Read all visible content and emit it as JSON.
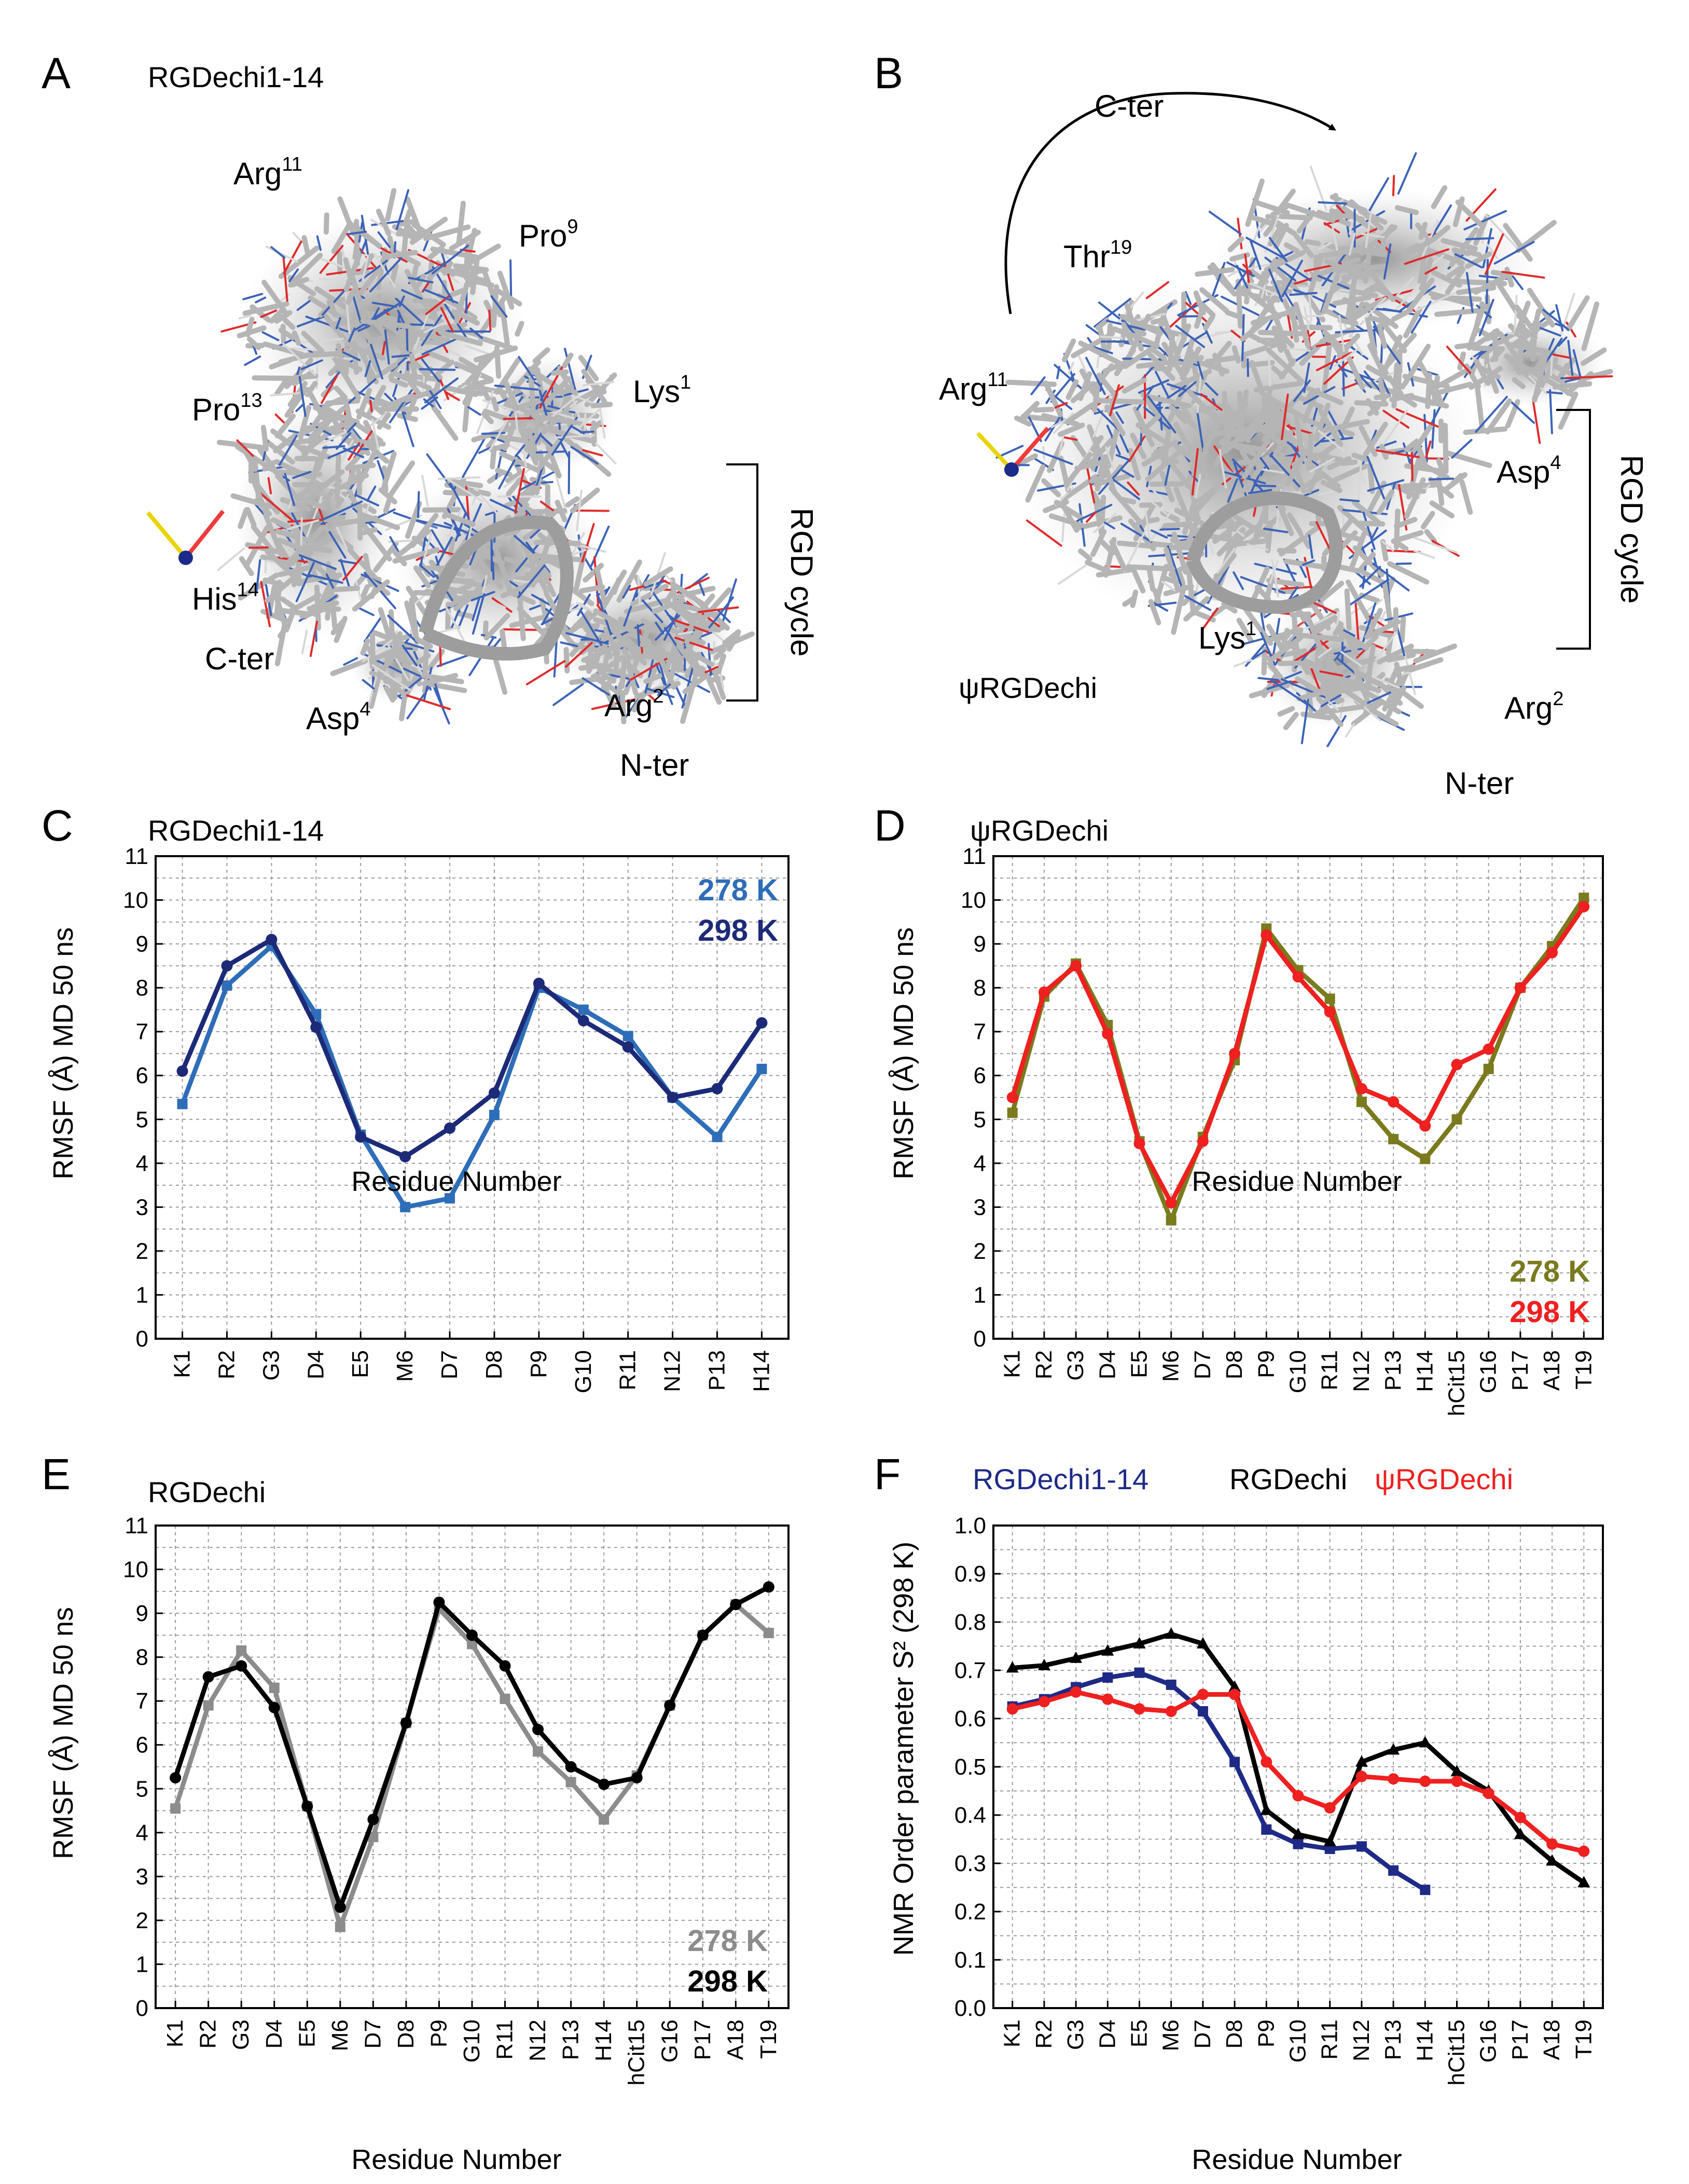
{
  "panels": {
    "A": {
      "letter": "A",
      "title": "RGDechi1-14",
      "labels": {
        "arg11": {
          "base": "Arg",
          "sup": "11"
        },
        "pro9": {
          "base": "Pro",
          "sup": "9"
        },
        "lys1": {
          "base": "Lys",
          "sup": "1"
        },
        "pro13": {
          "base": "Pro",
          "sup": "13"
        },
        "his14": {
          "base": "His",
          "sup": "14"
        },
        "cter": "C-ter",
        "asp4": {
          "base": "Asp",
          "sup": "4"
        },
        "arg2": {
          "base": "Arg",
          "sup": "2"
        },
        "nter": "N-ter",
        "rgd": "RGD cycle"
      }
    },
    "B": {
      "letter": "B",
      "title": "ψRGDechi",
      "labels": {
        "cter": "C-ter",
        "thr19": {
          "base": "Thr",
          "sup": "19"
        },
        "arg11": {
          "base": "Arg",
          "sup": "11"
        },
        "asp4": {
          "base": "Asp",
          "sup": "4"
        },
        "lys1": {
          "base": "Lys",
          "sup": "1"
        },
        "arg2": {
          "base": "Arg",
          "sup": "2"
        },
        "nter": "N-ter",
        "rgd": "RGD cycle"
      }
    },
    "C": {
      "letter": "C"
    },
    "D": {
      "letter": "D"
    },
    "E": {
      "letter": "E"
    },
    "F": {
      "letter": "F"
    }
  },
  "colors": {
    "c278": "#2e6db8",
    "c298": "#1c2a78",
    "d278": "#7a7a1e",
    "d298": "#ee2020",
    "e278": "#8c8c8c",
    "e298": "#000000",
    "f_short": "#1e2a86",
    "f_rgdechi": "#000000",
    "f_psi": "#ee2020"
  },
  "chart_data": [
    {
      "id": "C",
      "type": "line",
      "title": "RGDechi1-14",
      "xlabel": "Residue Number",
      "ylabel": "RMSF (Å) MD 50 ns",
      "ylim": [
        0,
        11
      ],
      "yticks": [
        "0",
        "1",
        "2",
        "3",
        "4",
        "5",
        "6",
        "7",
        "8",
        "9",
        "10",
        "11"
      ],
      "categories": [
        "K1",
        "R2",
        "G3",
        "D4",
        "E5",
        "M6",
        "D7",
        "D8",
        "P9",
        "G10",
        "R11",
        "N12",
        "P13",
        "H14"
      ],
      "legend_position": "top-right",
      "series": [
        {
          "name": "278 K",
          "color": "#2e6db8",
          "marker": "square",
          "values": [
            5.35,
            8.05,
            8.95,
            7.4,
            4.65,
            3.0,
            3.2,
            5.1,
            8.0,
            7.5,
            6.9,
            5.5,
            4.6,
            6.15
          ]
        },
        {
          "name": "298 K",
          "color": "#1c2a78",
          "marker": "circle",
          "values": [
            6.1,
            8.5,
            9.1,
            7.1,
            4.6,
            4.15,
            4.8,
            5.6,
            8.1,
            7.25,
            6.65,
            5.5,
            5.7,
            7.2
          ]
        }
      ]
    },
    {
      "id": "D",
      "type": "line",
      "title": "ψRGDechi",
      "xlabel": "Residue Number",
      "ylabel": "RMSF (Å) MD 50 ns",
      "ylim": [
        0,
        11
      ],
      "yticks": [
        "0",
        "1",
        "2",
        "3",
        "4",
        "5",
        "6",
        "7",
        "8",
        "9",
        "10",
        "11"
      ],
      "categories": [
        "K1",
        "R2",
        "G3",
        "D4",
        "E5",
        "M6",
        "D7",
        "D8",
        "P9",
        "G10",
        "R11",
        "N12",
        "P13",
        "H14",
        "hCit15",
        "G16",
        "P17",
        "A18",
        "T19"
      ],
      "legend_position": "bottom-right",
      "series": [
        {
          "name": "278 K",
          "color": "#7a7a1e",
          "marker": "square",
          "values": [
            5.15,
            7.8,
            8.55,
            7.15,
            4.5,
            2.7,
            4.6,
            6.35,
            9.35,
            8.4,
            7.75,
            5.4,
            4.55,
            4.1,
            5.0,
            6.15,
            8.0,
            8.95,
            10.05
          ]
        },
        {
          "name": "298 K",
          "color": "#ee2020",
          "marker": "circle",
          "values": [
            5.5,
            7.9,
            8.5,
            6.95,
            4.45,
            3.1,
            4.5,
            6.5,
            9.2,
            8.25,
            7.45,
            5.7,
            5.4,
            4.85,
            6.25,
            6.6,
            8.0,
            8.8,
            9.85
          ]
        }
      ]
    },
    {
      "id": "E",
      "type": "line",
      "title": "RGDechi",
      "xlabel": "Residue Number",
      "ylabel": "RMSF (Å) MD 50 ns",
      "ylim": [
        0,
        11
      ],
      "yticks": [
        "0",
        "1",
        "2",
        "3",
        "4",
        "5",
        "6",
        "7",
        "8",
        "9",
        "10",
        "11"
      ],
      "categories": [
        "K1",
        "R2",
        "G3",
        "D4",
        "E5",
        "M6",
        "D7",
        "D8",
        "P9",
        "G10",
        "R11",
        "N12",
        "P13",
        "H14",
        "hCit15",
        "G16",
        "P17",
        "A18",
        "T19"
      ],
      "legend_position": "bottom-right",
      "series": [
        {
          "name": "278 K",
          "color": "#8c8c8c",
          "marker": "square",
          "values": [
            4.55,
            6.9,
            8.15,
            7.3,
            4.6,
            1.85,
            3.9,
            6.5,
            9.1,
            8.3,
            7.05,
            5.85,
            5.15,
            4.3,
            5.3,
            6.9,
            8.5,
            9.2,
            8.55
          ]
        },
        {
          "name": "298 K",
          "color": "#000000",
          "marker": "circle",
          "values": [
            5.25,
            7.55,
            7.8,
            6.85,
            4.6,
            2.3,
            4.3,
            6.5,
            9.25,
            8.5,
            7.8,
            6.35,
            5.5,
            5.1,
            5.25,
            6.9,
            8.5,
            9.2,
            9.6
          ]
        }
      ]
    },
    {
      "id": "F",
      "type": "line",
      "title": "",
      "xlabel": "Residue Number",
      "ylabel": "NMR Order parameter S² (298 K)",
      "ylim": [
        0,
        1.0
      ],
      "yticks": [
        "0.0",
        "0.1",
        "0.2",
        "0.3",
        "0.4",
        "0.5",
        "0.6",
        "0.7",
        "0.8",
        "0.9",
        "1.0"
      ],
      "categories": [
        "K1",
        "R2",
        "G3",
        "D4",
        "E5",
        "M6",
        "D7",
        "D8",
        "P9",
        "G10",
        "R11",
        "N12",
        "P13",
        "H14",
        "hCit15",
        "G16",
        "P17",
        "A18",
        "T19"
      ],
      "legend_position": "top",
      "series": [
        {
          "name": "RGDechi1-14",
          "color": "#1e2a86",
          "marker": "square",
          "values": [
            0.625,
            0.64,
            0.665,
            0.685,
            0.695,
            0.67,
            0.615,
            0.51,
            0.37,
            0.34,
            0.33,
            0.335,
            0.285,
            0.245,
            null,
            null,
            null,
            null,
            null
          ]
        },
        {
          "name": "RGDechi",
          "color": "#000000",
          "marker": "triangle",
          "values": [
            0.705,
            0.71,
            0.725,
            0.74,
            0.755,
            0.775,
            0.755,
            0.665,
            0.41,
            0.36,
            0.345,
            0.51,
            0.535,
            0.55,
            0.49,
            0.45,
            0.36,
            0.305,
            0.26
          ]
        },
        {
          "name": "ψRGDechi",
          "color": "#ee2020",
          "marker": "circle",
          "values": [
            0.62,
            0.635,
            0.655,
            0.64,
            0.62,
            0.615,
            0.65,
            0.65,
            0.51,
            0.44,
            0.415,
            0.48,
            0.475,
            0.47,
            0.47,
            0.445,
            0.395,
            0.34,
            0.325
          ]
        }
      ]
    }
  ]
}
